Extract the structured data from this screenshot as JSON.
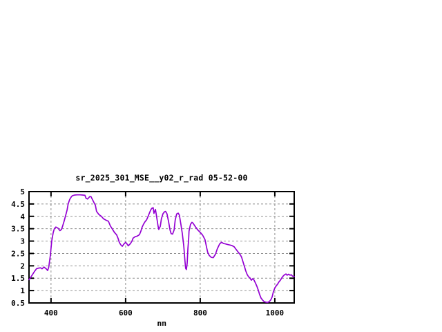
{
  "chart": {
    "title": "sr_2025_301_MSE__y02_r_rad 05-52-00",
    "x_axis_label": "nm"
  },
  "chart_data": {
    "type": "line",
    "title": "sr_2025_301_MSE__y02_r_rad 05-52-00",
    "xlabel": "nm",
    "ylabel": "",
    "xlim": [
      341,
      1052
    ],
    "ylim": [
      0.5,
      5
    ],
    "x_ticks": [
      400,
      600,
      800,
      1000
    ],
    "y_ticks": [
      0.5,
      1,
      1.5,
      2,
      2.5,
      3,
      3.5,
      4,
      4.5,
      5
    ],
    "grid": true,
    "grid_style": "dashed",
    "legend": false,
    "colors": {
      "line": "#9400D3",
      "grid": "#909090",
      "border": "#000000",
      "background": "#ffffff",
      "text": "#000000"
    },
    "series": [
      {
        "name": "sr_2025_301_MSE__y02_r_rad 05-52-00",
        "points": [
          [
            341,
            1.44
          ],
          [
            344,
            1.5
          ],
          [
            350,
            1.64
          ],
          [
            356,
            1.78
          ],
          [
            361,
            1.88
          ],
          [
            367,
            1.91
          ],
          [
            372,
            1.92
          ],
          [
            376,
            1.88
          ],
          [
            381,
            1.95
          ],
          [
            387,
            1.88
          ],
          [
            391,
            1.81
          ],
          [
            394,
            1.95
          ],
          [
            398,
            2.4
          ],
          [
            402,
            3.0
          ],
          [
            406,
            3.35
          ],
          [
            409,
            3.5
          ],
          [
            413,
            3.57
          ],
          [
            419,
            3.52
          ],
          [
            424,
            3.42
          ],
          [
            428,
            3.47
          ],
          [
            431,
            3.6
          ],
          [
            435,
            3.8
          ],
          [
            439,
            4.02
          ],
          [
            443,
            4.25
          ],
          [
            446,
            4.5
          ],
          [
            450,
            4.68
          ],
          [
            454,
            4.78
          ],
          [
            457,
            4.83
          ],
          [
            463,
            4.86
          ],
          [
            470,
            4.87
          ],
          [
            478,
            4.87
          ],
          [
            485,
            4.86
          ],
          [
            491,
            4.85
          ],
          [
            494,
            4.73
          ],
          [
            498,
            4.7
          ],
          [
            504,
            4.8
          ],
          [
            507,
            4.8
          ],
          [
            511,
            4.68
          ],
          [
            515,
            4.56
          ],
          [
            519,
            4.45
          ],
          [
            522,
            4.2
          ],
          [
            528,
            4.08
          ],
          [
            535,
            4.0
          ],
          [
            541,
            3.9
          ],
          [
            548,
            3.84
          ],
          [
            554,
            3.8
          ],
          [
            559,
            3.62
          ],
          [
            565,
            3.47
          ],
          [
            570,
            3.35
          ],
          [
            576,
            3.25
          ],
          [
            580,
            3.1
          ],
          [
            583,
            2.95
          ],
          [
            587,
            2.85
          ],
          [
            591,
            2.79
          ],
          [
            596,
            2.89
          ],
          [
            600,
            2.95
          ],
          [
            604,
            2.88
          ],
          [
            607,
            2.81
          ],
          [
            613,
            2.9
          ],
          [
            617,
            3.0
          ],
          [
            620,
            3.12
          ],
          [
            626,
            3.18
          ],
          [
            631,
            3.2
          ],
          [
            637,
            3.26
          ],
          [
            641,
            3.4
          ],
          [
            644,
            3.55
          ],
          [
            648,
            3.68
          ],
          [
            652,
            3.78
          ],
          [
            656,
            3.85
          ],
          [
            659,
            3.95
          ],
          [
            663,
            4.1
          ],
          [
            667,
            4.25
          ],
          [
            670,
            4.32
          ],
          [
            674,
            4.35
          ],
          [
            676,
            4.12
          ],
          [
            680,
            4.28
          ],
          [
            683,
            4.0
          ],
          [
            687,
            3.6
          ],
          [
            689,
            3.47
          ],
          [
            693,
            3.6
          ],
          [
            696,
            3.9
          ],
          [
            700,
            4.1
          ],
          [
            704,
            4.18
          ],
          [
            707,
            4.2
          ],
          [
            711,
            4.1
          ],
          [
            715,
            3.8
          ],
          [
            719,
            3.45
          ],
          [
            722,
            3.3
          ],
          [
            726,
            3.28
          ],
          [
            730,
            3.45
          ],
          [
            733,
            3.85
          ],
          [
            737,
            4.1
          ],
          [
            741,
            4.13
          ],
          [
            744,
            4.05
          ],
          [
            748,
            3.7
          ],
          [
            752,
            3.3
          ],
          [
            756,
            2.8
          ],
          [
            759,
            2.2
          ],
          [
            761,
            1.9
          ],
          [
            763,
            1.85
          ],
          [
            765,
            2.1
          ],
          [
            767,
            2.7
          ],
          [
            769,
            3.1
          ],
          [
            770,
            3.4
          ],
          [
            774,
            3.68
          ],
          [
            778,
            3.76
          ],
          [
            781,
            3.72
          ],
          [
            787,
            3.58
          ],
          [
            794,
            3.44
          ],
          [
            800,
            3.35
          ],
          [
            806,
            3.25
          ],
          [
            809,
            3.17
          ],
          [
            813,
            3.05
          ],
          [
            817,
            2.75
          ],
          [
            820,
            2.55
          ],
          [
            824,
            2.42
          ],
          [
            830,
            2.34
          ],
          [
            835,
            2.33
          ],
          [
            841,
            2.47
          ],
          [
            846,
            2.69
          ],
          [
            852,
            2.88
          ],
          [
            857,
            2.95
          ],
          [
            863,
            2.9
          ],
          [
            869,
            2.88
          ],
          [
            874,
            2.86
          ],
          [
            880,
            2.84
          ],
          [
            885,
            2.82
          ],
          [
            891,
            2.77
          ],
          [
            896,
            2.67
          ],
          [
            902,
            2.55
          ],
          [
            907,
            2.46
          ],
          [
            911,
            2.35
          ],
          [
            915,
            2.15
          ],
          [
            919,
            1.95
          ],
          [
            922,
            1.8
          ],
          [
            926,
            1.65
          ],
          [
            930,
            1.55
          ],
          [
            933,
            1.52
          ],
          [
            937,
            1.42
          ],
          [
            941,
            1.48
          ],
          [
            944,
            1.43
          ],
          [
            948,
            1.31
          ],
          [
            952,
            1.17
          ],
          [
            956,
            1.0
          ],
          [
            959,
            0.85
          ],
          [
            963,
            0.7
          ],
          [
            967,
            0.62
          ],
          [
            970,
            0.57
          ],
          [
            974,
            0.54
          ],
          [
            980,
            0.52
          ],
          [
            985,
            0.55
          ],
          [
            989,
            0.62
          ],
          [
            993,
            0.75
          ],
          [
            996,
            0.95
          ],
          [
            1000,
            1.1
          ],
          [
            1004,
            1.2
          ],
          [
            1007,
            1.25
          ],
          [
            1011,
            1.35
          ],
          [
            1015,
            1.42
          ],
          [
            1019,
            1.52
          ],
          [
            1022,
            1.58
          ],
          [
            1026,
            1.64
          ],
          [
            1030,
            1.67
          ],
          [
            1033,
            1.62
          ],
          [
            1037,
            1.66
          ],
          [
            1041,
            1.62
          ],
          [
            1044,
            1.64
          ],
          [
            1048,
            1.58
          ],
          [
            1052,
            1.57
          ]
        ]
      }
    ]
  }
}
